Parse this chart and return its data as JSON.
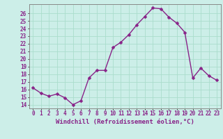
{
  "x": [
    0,
    1,
    2,
    3,
    4,
    5,
    6,
    7,
    8,
    9,
    10,
    11,
    12,
    13,
    14,
    15,
    16,
    17,
    18,
    19,
    20,
    21,
    22,
    23
  ],
  "y": [
    16.2,
    15.5,
    15.1,
    15.4,
    14.9,
    14.0,
    14.5,
    17.5,
    18.5,
    18.5,
    21.5,
    22.2,
    23.2,
    24.5,
    25.6,
    26.7,
    26.6,
    25.5,
    24.7,
    23.5,
    17.5,
    18.8,
    17.8,
    17.2
  ],
  "line_color": "#882288",
  "marker": "D",
  "markersize": 2.5,
  "linewidth": 1.0,
  "xlabel": "Windchill (Refroidissement éolien,°C)",
  "xlabel_fontsize": 6.5,
  "bg_color": "#cceee8",
  "grid_color": "#aaddcc",
  "ylim": [
    13.5,
    27.2
  ],
  "xlim": [
    -0.5,
    23.5
  ],
  "yticks": [
    14,
    15,
    16,
    17,
    18,
    19,
    20,
    21,
    22,
    23,
    24,
    25,
    26
  ],
  "xticks": [
    0,
    1,
    2,
    3,
    4,
    5,
    6,
    7,
    8,
    9,
    10,
    11,
    12,
    13,
    14,
    15,
    16,
    17,
    18,
    19,
    20,
    21,
    22,
    23
  ],
  "tick_fontsize": 5.5,
  "spine_color": "#888888",
  "axis_color": "#882288"
}
